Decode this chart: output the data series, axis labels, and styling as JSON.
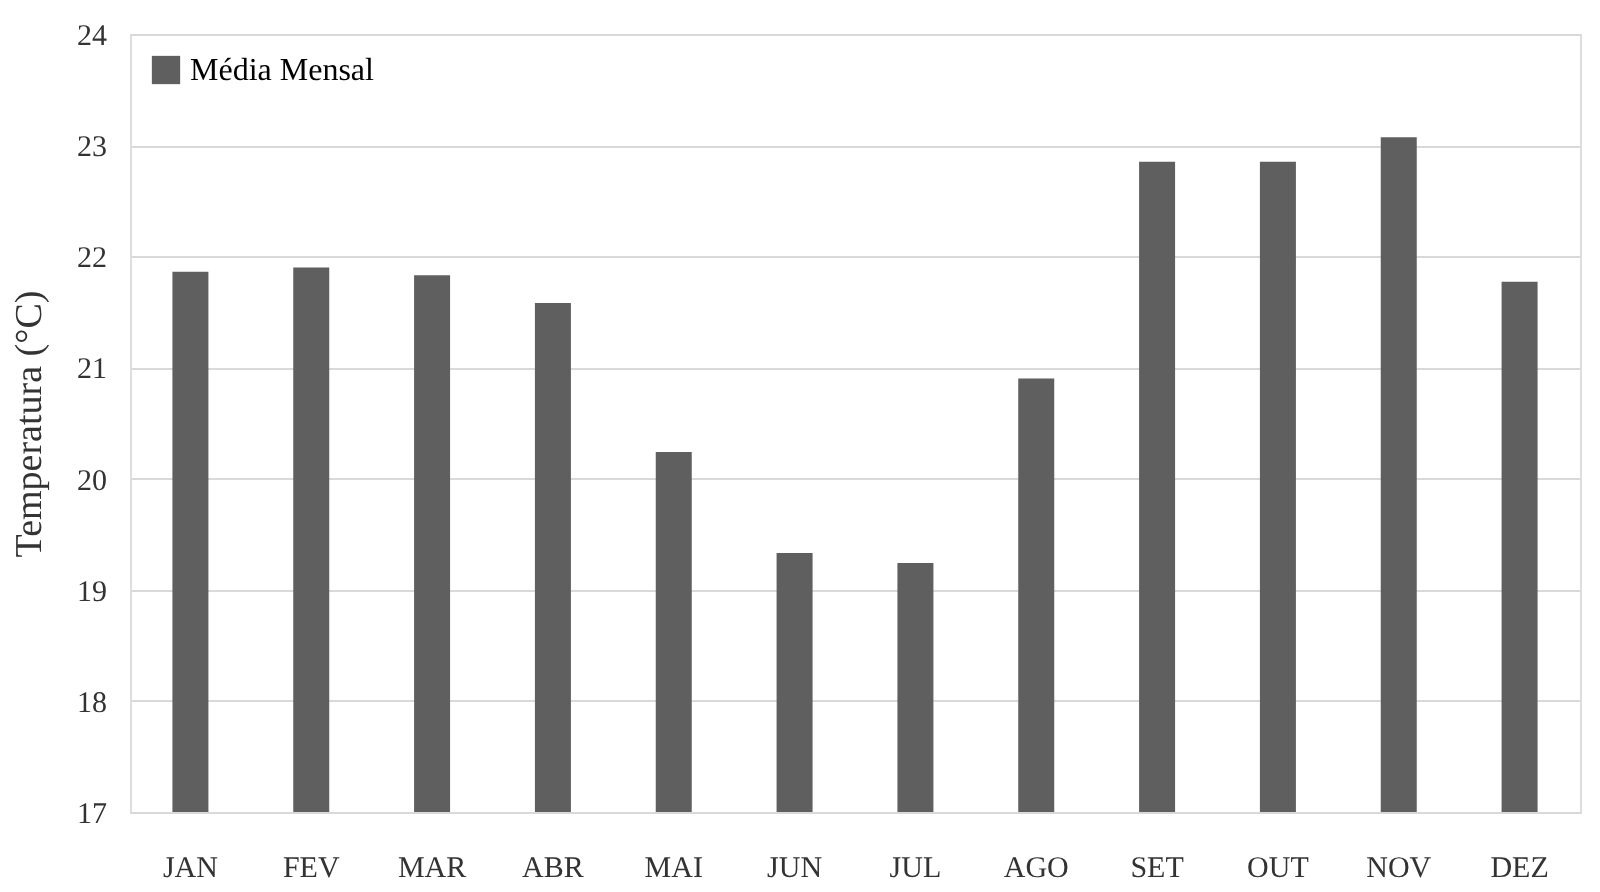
{
  "chart_data": {
    "type": "bar",
    "ylabel": "Temperatura (°C)",
    "categories": [
      "JAN",
      "FEV",
      "MAR",
      "ABR",
      "MAI",
      "JUN",
      "JUL",
      "AGO",
      "SET",
      "OUT",
      "NOV",
      "DEZ"
    ],
    "series": [
      {
        "name": "Média Mensal",
        "color": "#5f5f5f",
        "values": [
          21.86,
          21.9,
          21.83,
          21.58,
          20.24,
          19.33,
          19.24,
          20.9,
          22.85,
          22.85,
          23.07,
          21.77
        ]
      }
    ],
    "ylim": [
      17,
      24
    ],
    "yticks": [
      17,
      18,
      19,
      20,
      21,
      22,
      23,
      24
    ],
    "grid": "y",
    "legend": "top left"
  }
}
